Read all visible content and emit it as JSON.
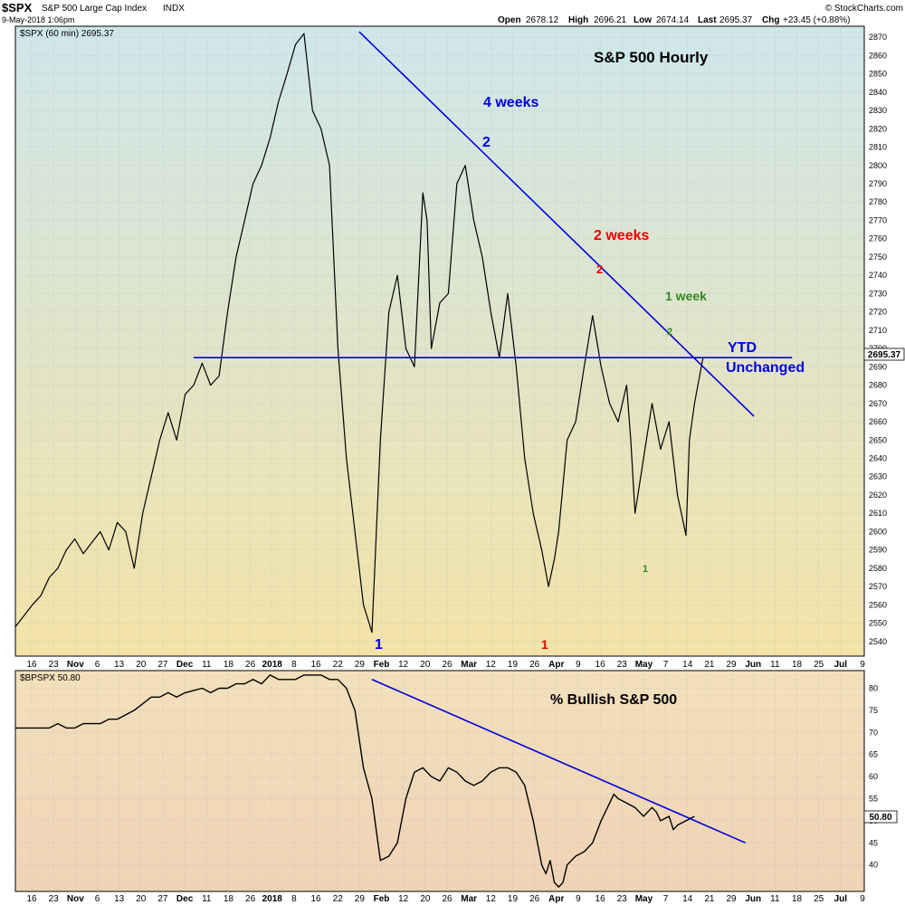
{
  "header": {
    "ticker": "$SPX",
    "name": "S&P 500 Large Cap Index",
    "exchange": "INDX",
    "datetime": "9-May-2018 1:06pm",
    "credit": "© StockCharts.com",
    "ohlc": {
      "open_label": "Open",
      "open": "2678.12",
      "high_label": "High",
      "high": "2696.21",
      "low_label": "Low",
      "low": "2674.14",
      "last_label": "Last",
      "last": "2695.37",
      "chg_label": "Chg",
      "chg": "+23.45 (+0.88%)"
    }
  },
  "top_panel": {
    "legend": "$SPX (60 min) 2695.37",
    "current_label": "2695.37",
    "background": {
      "top": "#cfe6ea",
      "bottom": "#f3e3a8"
    },
    "line_color": "#000000",
    "trend_color": "#0000dd"
  },
  "bottom_panel": {
    "legend": "$BPSPX 50.80",
    "current_label": "50.80",
    "background": {
      "top": "#f2e0bc",
      "bottom": "#efd3b6"
    },
    "line_color": "#000000",
    "trend_color": "#0000dd"
  },
  "x_axis": {
    "labels": [
      {
        "t": "16",
        "bold": false
      },
      {
        "t": "23",
        "bold": false
      },
      {
        "t": "Nov",
        "bold": true
      },
      {
        "t": "6",
        "bold": false
      },
      {
        "t": "13",
        "bold": false
      },
      {
        "t": "20",
        "bold": false
      },
      {
        "t": "27",
        "bold": false
      },
      {
        "t": "Dec",
        "bold": true
      },
      {
        "t": "11",
        "bold": false
      },
      {
        "t": "18",
        "bold": false
      },
      {
        "t": "26",
        "bold": false
      },
      {
        "t": "2018",
        "bold": true
      },
      {
        "t": "8",
        "bold": false
      },
      {
        "t": "16",
        "bold": false
      },
      {
        "t": "22",
        "bold": false
      },
      {
        "t": "29",
        "bold": false
      },
      {
        "t": "Feb",
        "bold": true
      },
      {
        "t": "12",
        "bold": false
      },
      {
        "t": "20",
        "bold": false
      },
      {
        "t": "26",
        "bold": false
      },
      {
        "t": "Mar",
        "bold": true
      },
      {
        "t": "12",
        "bold": false
      },
      {
        "t": "19",
        "bold": false
      },
      {
        "t": "26",
        "bold": false
      },
      {
        "t": "Apr",
        "bold": true
      },
      {
        "t": "9",
        "bold": false
      },
      {
        "t": "16",
        "bold": false
      },
      {
        "t": "23",
        "bold": false
      },
      {
        "t": "May",
        "bold": true
      },
      {
        "t": "7",
        "bold": false
      },
      {
        "t": "14",
        "bold": false
      },
      {
        "t": "21",
        "bold": false
      },
      {
        "t": "29",
        "bold": false
      },
      {
        "t": "Jun",
        "bold": true
      },
      {
        "t": "11",
        "bold": false
      },
      {
        "t": "18",
        "bold": false
      },
      {
        "t": "25",
        "bold": false
      },
      {
        "t": "Jul",
        "bold": true
      },
      {
        "t": "9",
        "bold": false
      }
    ]
  },
  "chart_data": [
    {
      "type": "line",
      "title": "S&P 500 Hourly",
      "ylim": [
        2532,
        2876
      ],
      "yticks": [
        2540,
        2550,
        2560,
        2570,
        2580,
        2590,
        2600,
        2610,
        2620,
        2630,
        2640,
        2650,
        2660,
        2670,
        2680,
        2690,
        2700,
        2710,
        2720,
        2730,
        2740,
        2750,
        2760,
        2770,
        2780,
        2790,
        2800,
        2810,
        2820,
        2830,
        2840,
        2850,
        2860,
        2870
      ],
      "xlim": [
        0,
        100
      ],
      "series": [
        {
          "x": [
            0,
            2,
            3,
            4,
            5,
            6,
            7,
            8,
            10,
            11,
            12,
            13,
            14,
            15,
            16,
            17,
            18,
            19,
            20,
            21,
            22,
            23,
            24,
            25,
            26,
            27,
            28,
            29,
            30,
            31,
            32,
            33,
            34,
            35,
            36,
            37,
            38,
            39,
            40,
            41,
            42,
            43,
            44,
            45,
            46,
            47,
            48,
            48.5,
            49,
            50,
            51,
            52,
            53,
            54,
            55,
            56,
            57,
            58,
            59,
            60,
            61,
            62,
            62.8,
            63.5,
            64,
            65,
            66,
            67,
            68,
            69,
            70,
            71,
            72,
            72.5,
            73,
            74,
            75,
            76,
            77,
            78,
            79,
            79.4,
            80,
            81
          ],
          "y": [
            2548,
            2560,
            2565,
            2575,
            2580,
            2590,
            2596,
            2588,
            2600,
            2590,
            2605,
            2600,
            2580,
            2610,
            2630,
            2650,
            2665,
            2650,
            2675,
            2680,
            2692,
            2680,
            2685,
            2720,
            2750,
            2770,
            2790,
            2800,
            2815,
            2835,
            2850,
            2866,
            2872,
            2830,
            2820,
            2800,
            2700,
            2640,
            2600,
            2560,
            2545,
            2650,
            2720,
            2740,
            2700,
            2690,
            2785,
            2770,
            2700,
            2725,
            2730,
            2790,
            2800,
            2770,
            2750,
            2720,
            2695,
            2730,
            2690,
            2640,
            2610,
            2590,
            2570,
            2585,
            2600,
            2650,
            2660,
            2690,
            2718,
            2690,
            2670,
            2660,
            2680,
            2650,
            2610,
            2640,
            2670,
            2645,
            2660,
            2620,
            2598,
            2650,
            2670,
            2695
          ]
        }
      ],
      "annotations": [
        {
          "text": "4 weeks",
          "color": "#0000dd"
        },
        {
          "text": "2",
          "color": "#0000dd"
        },
        {
          "text": "2 weeks",
          "color": "#ee0000"
        },
        {
          "text": "2",
          "color": "#ee0000"
        },
        {
          "text": "1 week",
          "color": "#338822"
        },
        {
          "text": "2",
          "color": "#338822"
        },
        {
          "text": "YTD",
          "color": "#0000dd"
        },
        {
          "text": "Unchanged",
          "color": "#0000dd"
        },
        {
          "text": "1",
          "color": "#0000dd"
        },
        {
          "text": "1",
          "color": "#ee0000"
        },
        {
          "text": "1",
          "color": "#338822"
        }
      ],
      "trendlines": [
        {
          "x": [
            40.5,
            87
          ],
          "y": [
            2873,
            2663
          ]
        },
        {
          "x": [
            21,
            91.5
          ],
          "y": [
            2695,
            2695
          ]
        }
      ]
    },
    {
      "type": "line",
      "title": "% Bullish S&P 500",
      "ylim": [
        34,
        84
      ],
      "yticks": [
        40,
        45,
        50,
        55,
        60,
        65,
        70,
        75,
        80
      ],
      "xlim": [
        0,
        100
      ],
      "series": [
        {
          "x": [
            0,
            2,
            4,
            5,
            6,
            7,
            8,
            10,
            11,
            12,
            14,
            16,
            17,
            18,
            19,
            20,
            22,
            23,
            24,
            25,
            26,
            27,
            28,
            29,
            30,
            31,
            32,
            33,
            34,
            35,
            36,
            37,
            38,
            39,
            40,
            41,
            42,
            43,
            44,
            45,
            46,
            47,
            48,
            49,
            50,
            51,
            52,
            53,
            54,
            55,
            56,
            57,
            58,
            59,
            60,
            61,
            62,
            62.5,
            63,
            63.5,
            64,
            64.5,
            65,
            66,
            67,
            68,
            69,
            70,
            70.5,
            71,
            72,
            73,
            74,
            75,
            75.5,
            76,
            77,
            77.5,
            78,
            79,
            80
          ],
          "y": [
            71,
            71,
            71,
            72,
            71,
            71,
            72,
            72,
            73,
            73,
            75,
            78,
            78,
            79,
            78,
            79,
            80,
            79,
            80,
            80,
            81,
            81,
            82,
            81,
            83,
            82,
            82,
            82,
            83,
            83,
            83,
            82,
            82,
            80,
            75,
            62,
            55,
            41,
            42,
            45,
            55,
            61,
            62,
            60,
            59,
            62,
            61,
            59,
            58,
            59,
            61,
            62,
            62,
            61,
            58,
            50,
            40,
            38,
            41,
            36,
            35,
            36,
            40,
            42,
            43,
            45,
            50,
            54,
            56,
            55,
            54,
            53,
            51,
            53,
            52,
            50,
            51,
            48,
            49,
            50,
            51
          ]
        }
      ],
      "trendlines": [
        {
          "x": [
            42,
            86
          ],
          "y": [
            82,
            45
          ]
        }
      ]
    }
  ]
}
